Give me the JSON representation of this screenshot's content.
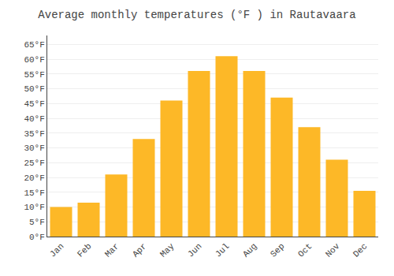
{
  "chart_data": {
    "type": "bar",
    "title": "Average monthly temperatures (°F ) in Rautavaara",
    "categories": [
      "Jan",
      "Feb",
      "Mar",
      "Apr",
      "May",
      "Jun",
      "Jul",
      "Aug",
      "Sep",
      "Oct",
      "Nov",
      "Dec"
    ],
    "values": [
      10.0,
      11.5,
      21.0,
      33.0,
      46.0,
      56.0,
      61.0,
      56.0,
      47.0,
      37.0,
      26.0,
      15.5
    ],
    "color": "#FDB827",
    "ylim": [
      0,
      68
    ],
    "yticks": [
      {
        "value": 0,
        "label": "0°F"
      },
      {
        "value": 5,
        "label": "5°F"
      },
      {
        "value": 10,
        "label": "10°F"
      },
      {
        "value": 15,
        "label": "15°F"
      },
      {
        "value": 20,
        "label": "20°F"
      },
      {
        "value": 25,
        "label": "25°F"
      },
      {
        "value": 30,
        "label": "30°F"
      },
      {
        "value": 35,
        "label": "35°F"
      },
      {
        "value": 40,
        "label": "40°F"
      },
      {
        "value": 45,
        "label": "45°F"
      },
      {
        "value": 50,
        "label": "50°F"
      },
      {
        "value": 55,
        "label": "55°F"
      },
      {
        "value": 60,
        "label": "60°F"
      },
      {
        "value": 65,
        "label": "65°F"
      }
    ],
    "grid": true
  }
}
